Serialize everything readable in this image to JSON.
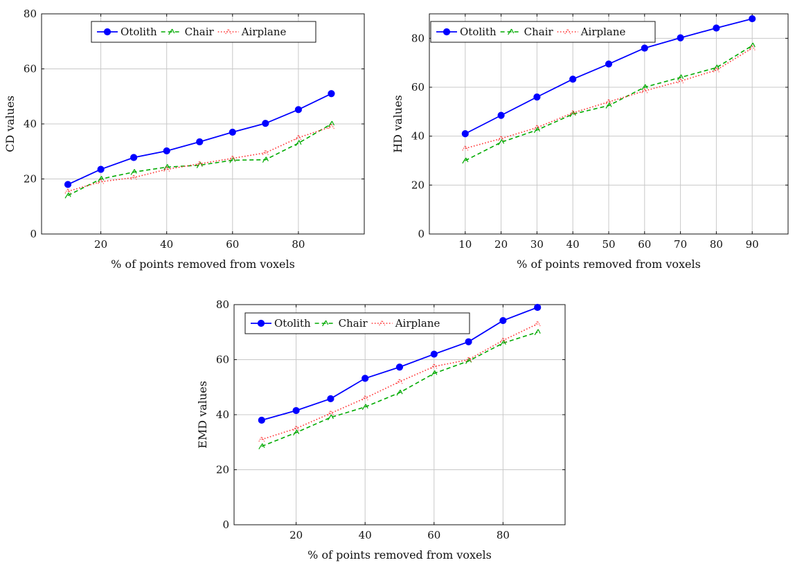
{
  "chart_data": [
    {
      "type": "line",
      "name": "cd",
      "xlabel": "% of points removed from voxels",
      "ylabel": "CD values",
      "xlim": [
        2,
        100
      ],
      "ylim": [
        0,
        80
      ],
      "xticks": [
        "20",
        "40",
        "60",
        "80"
      ],
      "xtick_values": [
        20,
        40,
        60,
        80
      ],
      "yticks": [
        "0",
        "20",
        "40",
        "60",
        "80"
      ],
      "ytick_values": [
        0,
        20,
        40,
        60,
        80
      ],
      "grid": true,
      "legend_position": "top",
      "x": [
        10,
        20,
        30,
        40,
        50,
        60,
        70,
        80,
        90
      ],
      "series": [
        {
          "name": "Otolith",
          "values": [
            18,
            23.5,
            27.8,
            30.2,
            33.5,
            37,
            40.2,
            45.2,
            51
          ],
          "color": "#0000ff",
          "style": "solid-circle"
        },
        {
          "name": "Chair",
          "values": [
            14,
            20,
            22.5,
            24.3,
            25,
            26.8,
            27,
            33,
            40
          ],
          "color": "#00aa00",
          "style": "dashed"
        },
        {
          "name": "Airplane",
          "values": [
            15.5,
            19,
            20.5,
            23.5,
            25.5,
            27.5,
            29.5,
            35,
            39
          ],
          "color": "#ff3333",
          "style": "dotted"
        }
      ]
    },
    {
      "type": "line",
      "name": "hd",
      "xlabel": "% of points removed from voxels",
      "ylabel": "HD values",
      "xlim": [
        0,
        100
      ],
      "ylim": [
        0,
        90
      ],
      "xticks": [
        "10",
        "20",
        "30",
        "40",
        "50",
        "60",
        "70",
        "80",
        "90"
      ],
      "xtick_values": [
        10,
        20,
        30,
        40,
        50,
        60,
        70,
        80,
        90
      ],
      "yticks": [
        "0",
        "20",
        "40",
        "60",
        "80"
      ],
      "ytick_values": [
        0,
        20,
        40,
        60,
        80
      ],
      "grid": true,
      "legend_position": "top",
      "x": [
        10,
        20,
        30,
        40,
        50,
        60,
        70,
        80,
        90
      ],
      "series": [
        {
          "name": "Otolith",
          "values": [
            41,
            48.5,
            56,
            63.3,
            69.5,
            76,
            80.2,
            84.2,
            88
          ],
          "color": "#0000ff",
          "style": "solid-circle"
        },
        {
          "name": "Chair",
          "values": [
            30,
            37.5,
            42.5,
            49,
            52.5,
            60,
            64,
            68,
            77
          ],
          "color": "#00aa00",
          "style": "dashed"
        },
        {
          "name": "Airplane",
          "values": [
            35,
            39,
            43.5,
            49.5,
            54,
            58.5,
            62.5,
            67,
            76
          ],
          "color": "#ff3333",
          "style": "dotted"
        }
      ]
    },
    {
      "type": "line",
      "name": "emd",
      "xlabel": "% of points removed from voxels",
      "ylabel": "EMD values",
      "xlim": [
        2,
        98
      ],
      "ylim": [
        0,
        80
      ],
      "xticks": [
        "20",
        "40",
        "60",
        "80"
      ],
      "xtick_values": [
        20,
        40,
        60,
        80
      ],
      "yticks": [
        "0",
        "20",
        "40",
        "60",
        "80"
      ],
      "ytick_values": [
        0,
        20,
        40,
        60,
        80
      ],
      "grid": true,
      "legend_position": "top",
      "x": [
        10,
        20,
        30,
        40,
        50,
        60,
        70,
        80,
        90
      ],
      "series": [
        {
          "name": "Otolith",
          "values": [
            38,
            41.5,
            45.8,
            53.2,
            57.3,
            62,
            66.5,
            74.2,
            79
          ],
          "color": "#0000ff",
          "style": "solid-circle"
        },
        {
          "name": "Chair",
          "values": [
            28.5,
            33.5,
            39,
            42.8,
            48,
            55,
            59.5,
            66,
            70
          ],
          "color": "#00aa00",
          "style": "dashed"
        },
        {
          "name": "Airplane",
          "values": [
            31,
            35,
            40.5,
            46,
            52,
            57.5,
            60,
            67,
            73
          ],
          "color": "#ff3333",
          "style": "dotted"
        }
      ]
    }
  ]
}
